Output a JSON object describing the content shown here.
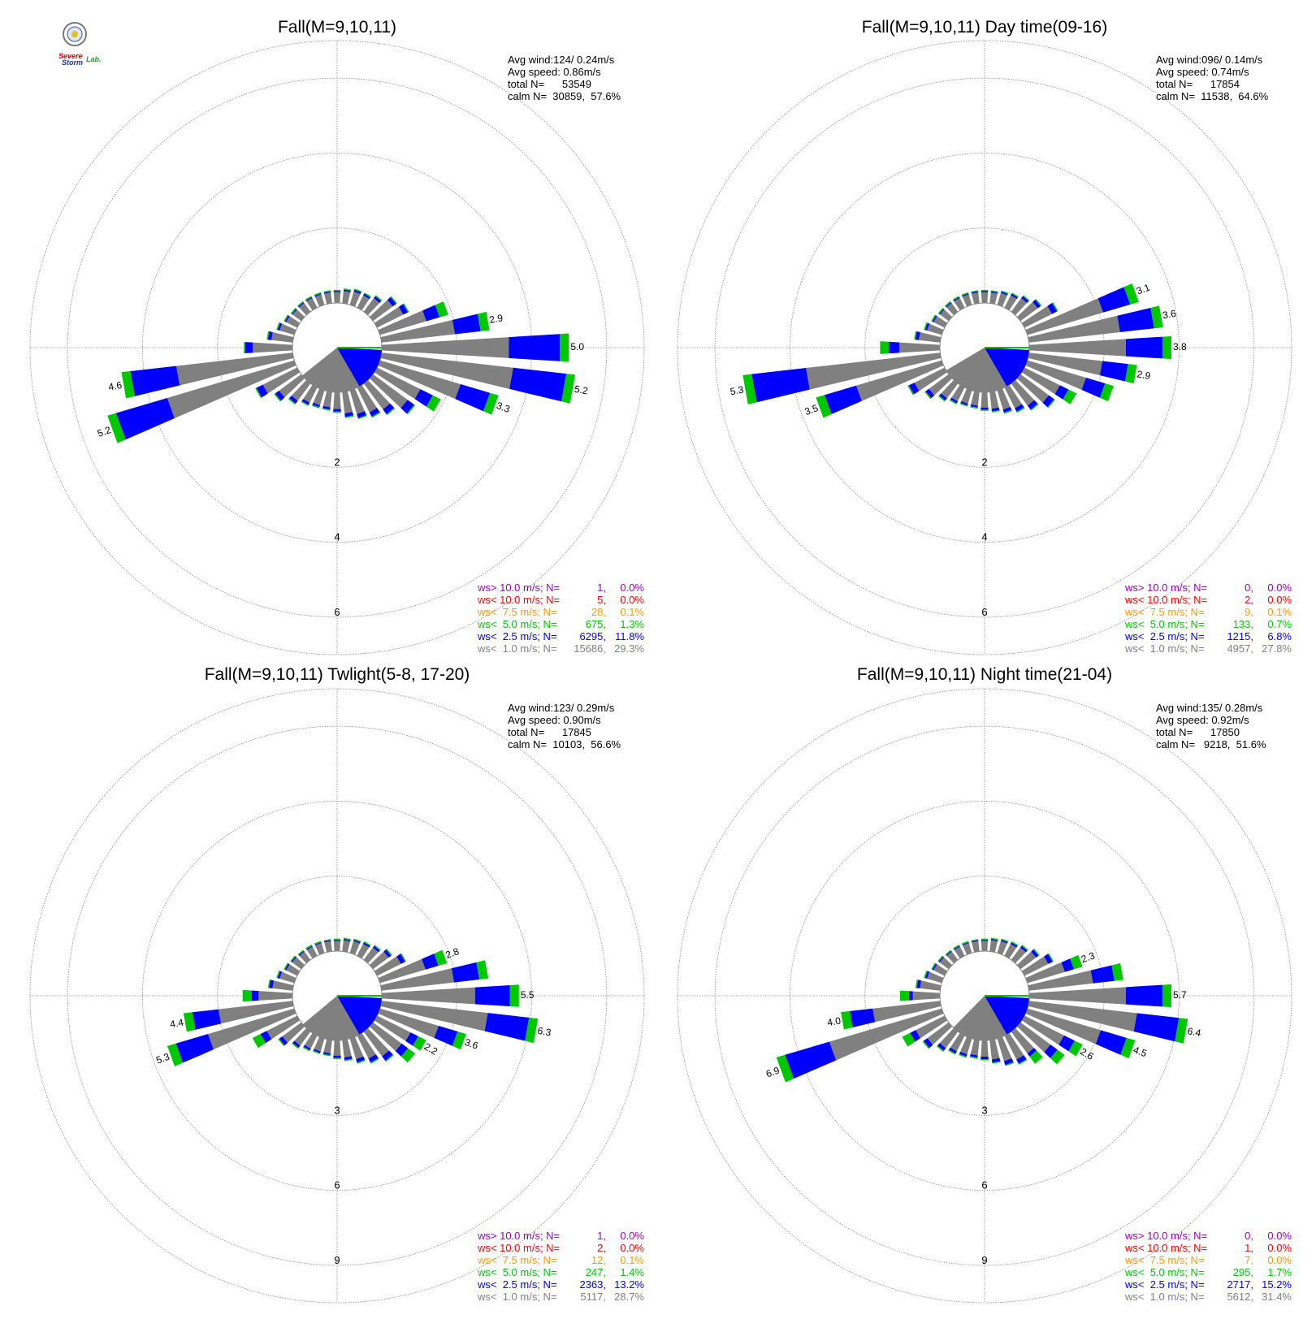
{
  "logo": {
    "word1": "Severe",
    "word2": "Storm",
    "word3": "Lab."
  },
  "colors": {
    "calm_bin": "#808080",
    "lt_2_5": "#0000ff",
    "lt_5_0": "#00c800",
    "lt_7_5": "#ff9900",
    "lt_10": "#ff0000",
    "gt_10": "#9900cc",
    "grid": "#888888"
  },
  "chart_data": [
    {
      "type": "wind-rose",
      "title": "Fall(M=9,10,11)",
      "stats": [
        "Avg wind:124/ 0.24m/s",
        "Avg speed: 0.86m/s",
        "total N=      53549",
        "calm N=  30859,  57.6%"
      ],
      "ring_labels": [
        "2",
        "4",
        "6"
      ],
      "ring_values": [
        2,
        4,
        6
      ],
      "max_radius_value": 7,
      "directions_deg": [
        0,
        10,
        20,
        30,
        40,
        50,
        60,
        70,
        80,
        90,
        100,
        110,
        120,
        130,
        140,
        150,
        160,
        170,
        180,
        190,
        200,
        210,
        220,
        230,
        240,
        250,
        260,
        270,
        280,
        290,
        300,
        310,
        320,
        330,
        340,
        350
      ],
      "totals": [
        0.35,
        0.4,
        0.45,
        0.45,
        0.55,
        0.8,
        0.95,
        1.9,
        2.9,
        5.0,
        5.2,
        3.3,
        1.9,
        1.4,
        1.05,
        0.9,
        0.8,
        0.7,
        0.55,
        0.5,
        0.5,
        0.55,
        0.7,
        0.9,
        1.25,
        5.2,
        4.6,
        1.3,
        0.7,
        0.5,
        0.4,
        0.35,
        0.35,
        0.35,
        0.35,
        0.35
      ],
      "bar_labels": [
        {
          "dir": 80,
          "text": "2.9"
        },
        {
          "dir": 90,
          "text": "5.0"
        },
        {
          "dir": 100,
          "text": "5.2"
        },
        {
          "dir": 110,
          "text": "3.3"
        },
        {
          "dir": 250,
          "text": "5.2"
        },
        {
          "dir": 260,
          "text": "4.6"
        }
      ],
      "calm_pie_fraction": 0.576,
      "legend": [
        {
          "prefix": "ws> 10.0 m/s; N=",
          "n": "1",
          "pct": "0.0%",
          "color": "#9900cc"
        },
        {
          "prefix": "ws< 10.0 m/s; N=",
          "n": "5",
          "pct": "0.0%",
          "color": "#ff0000"
        },
        {
          "prefix": "ws<  7.5 m/s; N=",
          "n": "28",
          "pct": "0.1%",
          "color": "#ff9900"
        },
        {
          "prefix": "ws<  5.0 m/s; N=",
          "n": "675",
          "pct": "1.3%",
          "color": "#00c800"
        },
        {
          "prefix": "ws<  2.5 m/s; N=",
          "n": "6295",
          "pct": "11.8%",
          "color": "#0000ff"
        },
        {
          "prefix": "ws<  1.0 m/s; N=",
          "n": "15686",
          "pct": "29.3%",
          "color": "#808080"
        }
      ]
    },
    {
      "type": "wind-rose",
      "title": "Fall(M=9,10,11) Day time(09-16)",
      "stats": [
        "Avg wind:096/ 0.14m/s",
        "Avg speed: 0.74m/s",
        "total N=      17854",
        "calm N=  11538,  64.6%"
      ],
      "ring_labels": [
        "2",
        "4",
        "6"
      ],
      "ring_values": [
        2,
        4,
        6
      ],
      "max_radius_value": 7,
      "directions_deg": [
        0,
        10,
        20,
        30,
        40,
        50,
        60,
        70,
        80,
        90,
        100,
        110,
        120,
        130,
        140,
        150,
        160,
        170,
        180,
        190,
        200,
        210,
        220,
        230,
        240,
        250,
        260,
        270,
        280,
        290,
        300,
        310,
        320,
        330,
        340,
        350
      ],
      "totals": [
        0.35,
        0.35,
        0.4,
        0.45,
        0.55,
        0.7,
        1.0,
        3.1,
        3.6,
        3.8,
        2.9,
        2.4,
        1.55,
        1.15,
        0.9,
        0.75,
        0.65,
        0.55,
        0.5,
        0.45,
        0.45,
        0.5,
        0.6,
        0.8,
        1.1,
        3.5,
        5.3,
        1.6,
        0.7,
        0.5,
        0.4,
        0.35,
        0.35,
        0.35,
        0.35,
        0.35
      ],
      "bar_labels": [
        {
          "dir": 70,
          "text": "3.1"
        },
        {
          "dir": 80,
          "text": "3.6"
        },
        {
          "dir": 90,
          "text": "3.8"
        },
        {
          "dir": 100,
          "text": "2.9"
        },
        {
          "dir": 250,
          "text": "3.5"
        },
        {
          "dir": 260,
          "text": "5.3"
        }
      ],
      "calm_pie_fraction": 0.646,
      "legend": [
        {
          "prefix": "ws> 10.0 m/s; N=",
          "n": "0",
          "pct": "0.0%",
          "color": "#9900cc"
        },
        {
          "prefix": "ws< 10.0 m/s; N=",
          "n": "2",
          "pct": "0.0%",
          "color": "#ff0000"
        },
        {
          "prefix": "ws<  7.5 m/s; N=",
          "n": "9",
          "pct": "0.1%",
          "color": "#ff9900"
        },
        {
          "prefix": "ws<  5.0 m/s; N=",
          "n": "133",
          "pct": "0.7%",
          "color": "#00c800"
        },
        {
          "prefix": "ws<  2.5 m/s; N=",
          "n": "1215",
          "pct": "6.8%",
          "color": "#0000ff"
        },
        {
          "prefix": "ws<  1.0 m/s; N=",
          "n": "4957",
          "pct": "27.8%",
          "color": "#808080"
        }
      ]
    },
    {
      "type": "wind-rose",
      "title": "Fall(M=9,10,11) Twlight(5-8, 17-20)",
      "stats": [
        "Avg wind:123/ 0.29m/s",
        "Avg speed: 0.90m/s",
        "total N=      17845",
        "calm N=  10103,  56.6%"
      ],
      "ring_labels": [
        "3",
        "6",
        "9"
      ],
      "ring_values": [
        3,
        6,
        9
      ],
      "max_radius_value": 10.5,
      "directions_deg": [
        0,
        10,
        20,
        30,
        40,
        50,
        60,
        70,
        80,
        90,
        100,
        110,
        120,
        130,
        140,
        150,
        160,
        170,
        180,
        190,
        200,
        210,
        220,
        230,
        240,
        250,
        260,
        270,
        280,
        290,
        300,
        310,
        320,
        330,
        340,
        350
      ],
      "totals": [
        0.5,
        0.55,
        0.6,
        0.65,
        0.75,
        0.95,
        1.3,
        2.8,
        4.3,
        5.5,
        6.3,
        3.6,
        2.2,
        2.1,
        1.5,
        1.25,
        1.05,
        0.85,
        0.75,
        0.65,
        0.65,
        0.7,
        0.85,
        1.15,
        2.0,
        5.3,
        4.4,
        2.0,
        1.0,
        0.75,
        0.6,
        0.55,
        0.5,
        0.5,
        0.5,
        0.5
      ],
      "bar_labels": [
        {
          "dir": 70,
          "text": "2.8"
        },
        {
          "dir": 90,
          "text": "5.5"
        },
        {
          "dir": 100,
          "text": "6.3"
        },
        {
          "dir": 110,
          "text": "3.6"
        },
        {
          "dir": 120,
          "text": "2.2"
        },
        {
          "dir": 250,
          "text": "5.3"
        },
        {
          "dir": 260,
          "text": "4.4"
        }
      ],
      "calm_pie_fraction": 0.566,
      "legend": [
        {
          "prefix": "ws> 10.0 m/s; N=",
          "n": "1",
          "pct": "0.0%",
          "color": "#9900cc"
        },
        {
          "prefix": "ws< 10.0 m/s; N=",
          "n": "2",
          "pct": "0.0%",
          "color": "#ff0000"
        },
        {
          "prefix": "ws<  7.5 m/s; N=",
          "n": "12",
          "pct": "0.1%",
          "color": "#ff9900"
        },
        {
          "prefix": "ws<  5.0 m/s; N=",
          "n": "247",
          "pct": "1.4%",
          "color": "#00c800"
        },
        {
          "prefix": "ws<  2.5 m/s; N=",
          "n": "2363",
          "pct": "13.2%",
          "color": "#0000ff"
        },
        {
          "prefix": "ws<  1.0 m/s; N=",
          "n": "5117",
          "pct": "28.7%",
          "color": "#808080"
        }
      ]
    },
    {
      "type": "wind-rose",
      "title": "Fall(M=9,10,11) Night time(21-04)",
      "stats": [
        "Avg wind:135/ 0.28m/s",
        "Avg speed: 0.92m/s",
        "total N=      17850",
        "calm N=   9218,  51.6%"
      ],
      "ring_labels": [
        "3",
        "6",
        "9"
      ],
      "ring_values": [
        3,
        6,
        9
      ],
      "max_radius_value": 10.5,
      "directions_deg": [
        0,
        10,
        20,
        30,
        40,
        50,
        60,
        70,
        80,
        90,
        100,
        110,
        120,
        130,
        140,
        150,
        160,
        170,
        180,
        190,
        200,
        210,
        220,
        230,
        240,
        250,
        260,
        270,
        280,
        290,
        300,
        310,
        320,
        330,
        340,
        350
      ],
      "totals": [
        0.5,
        0.55,
        0.6,
        0.65,
        0.75,
        0.95,
        1.3,
        2.3,
        3.8,
        5.7,
        6.4,
        4.5,
        2.6,
        2.2,
        1.6,
        1.3,
        1.15,
        0.95,
        0.8,
        0.75,
        0.8,
        0.85,
        1.0,
        1.3,
        1.9,
        6.9,
        4.0,
        1.6,
        1.0,
        0.75,
        0.6,
        0.55,
        0.5,
        0.5,
        0.5,
        0.5
      ],
      "bar_labels": [
        {
          "dir": 70,
          "text": "2.3"
        },
        {
          "dir": 90,
          "text": "5.7"
        },
        {
          "dir": 100,
          "text": "6.4"
        },
        {
          "dir": 110,
          "text": "4.5"
        },
        {
          "dir": 120,
          "text": "2.6"
        },
        {
          "dir": 250,
          "text": "6.9"
        },
        {
          "dir": 260,
          "text": "4.0"
        }
      ],
      "calm_pie_fraction": 0.516,
      "legend": [
        {
          "prefix": "ws> 10.0 m/s; N=",
          "n": "0",
          "pct": "0.0%",
          "color": "#9900cc"
        },
        {
          "prefix": "ws< 10.0 m/s; N=",
          "n": "1",
          "pct": "0.0%",
          "color": "#ff0000"
        },
        {
          "prefix": "ws<  7.5 m/s; N=",
          "n": "7",
          "pct": "0.0%",
          "color": "#ff9900"
        },
        {
          "prefix": "ws<  5.0 m/s; N=",
          "n": "295",
          "pct": "1.7%",
          "color": "#00c800"
        },
        {
          "prefix": "ws<  2.5 m/s; N=",
          "n": "2717",
          "pct": "15.2%",
          "color": "#0000ff"
        },
        {
          "prefix": "ws<  1.0 m/s; N=",
          "n": "5612",
          "pct": "31.4%",
          "color": "#808080"
        }
      ]
    }
  ]
}
